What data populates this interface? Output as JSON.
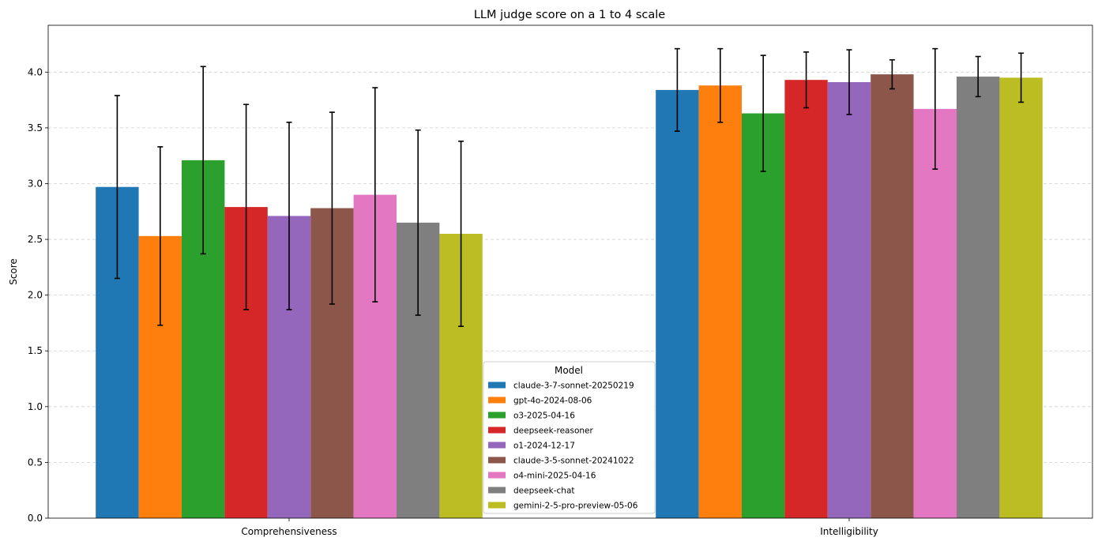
{
  "chart_data": {
    "type": "bar",
    "title": "LLM judge score on a 1 to 4 scale",
    "xlabel": "",
    "ylabel": "Score",
    "ylim": [
      0,
      4.42
    ],
    "yticks": [
      "0.0",
      "0.5",
      "1.0",
      "1.5",
      "2.0",
      "2.5",
      "3.0",
      "3.5",
      "4.0"
    ],
    "grid": "horizontal dashed",
    "legend_title": "Model",
    "legend_position": "bottom-center",
    "categories": [
      "Comprehensiveness",
      "Intelligibility"
    ],
    "series": [
      {
        "name": "claude-3-7-sonnet-20250219",
        "color": "#1f77b4",
        "values": [
          2.97,
          3.84
        ],
        "errors": [
          0.82,
          0.37
        ]
      },
      {
        "name": "gpt-4o-2024-08-06",
        "color": "#ff7f0e",
        "values": [
          2.53,
          3.88
        ],
        "errors": [
          0.8,
          0.33
        ]
      },
      {
        "name": "o3-2025-04-16",
        "color": "#2ca02c",
        "values": [
          3.21,
          3.63
        ],
        "errors": [
          0.84,
          0.52
        ]
      },
      {
        "name": "deepseek-reasoner",
        "color": "#d62728",
        "values": [
          2.79,
          3.93
        ],
        "errors": [
          0.92,
          0.25
        ]
      },
      {
        "name": "o1-2024-12-17",
        "color": "#9467bd",
        "values": [
          2.71,
          3.91
        ],
        "errors": [
          0.84,
          0.29
        ]
      },
      {
        "name": "claude-3-5-sonnet-20241022",
        "color": "#8c564b",
        "values": [
          2.78,
          3.98
        ],
        "errors": [
          0.86,
          0.13
        ]
      },
      {
        "name": "o4-mini-2025-04-16",
        "color": "#e377c2",
        "values": [
          2.9,
          3.67
        ],
        "errors": [
          0.96,
          0.54
        ]
      },
      {
        "name": "deepseek-chat",
        "color": "#7f7f7f",
        "values": [
          2.65,
          3.96
        ],
        "errors": [
          0.83,
          0.18
        ]
      },
      {
        "name": "gemini-2-5-pro-preview-05-06",
        "color": "#bcbd22",
        "values": [
          2.55,
          3.95
        ],
        "errors": [
          0.83,
          0.22
        ]
      }
    ]
  }
}
